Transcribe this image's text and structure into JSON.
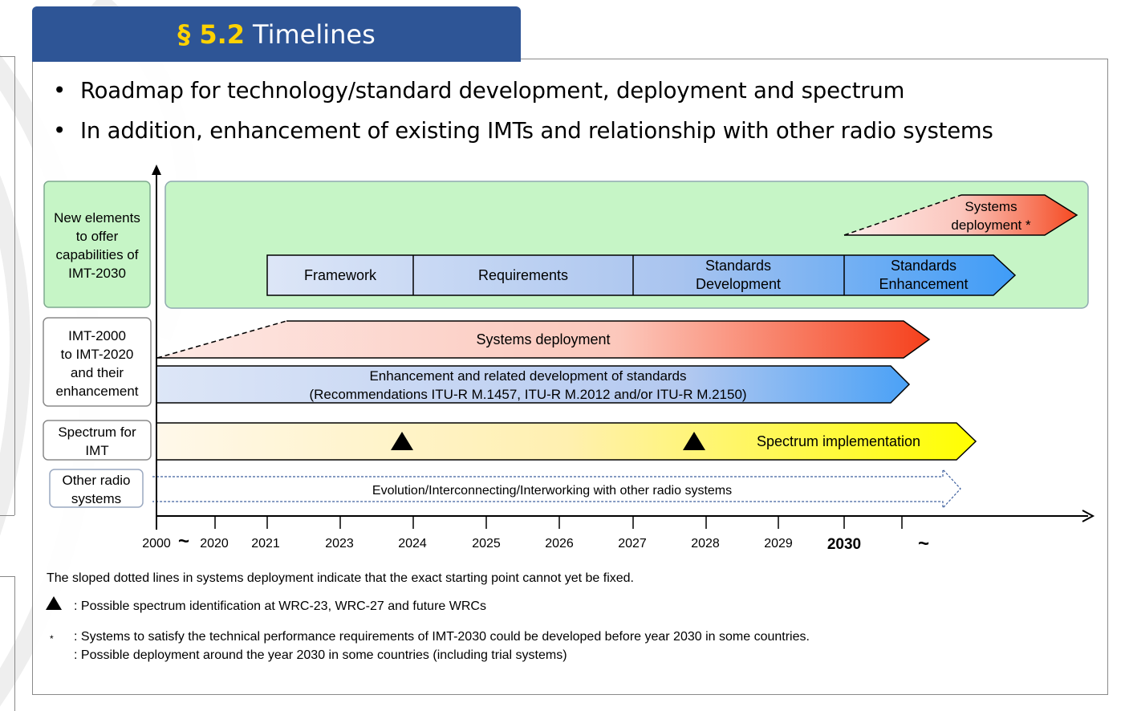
{
  "header": {
    "section_number": "§ 5.2",
    "title": "Timelines"
  },
  "bullets": [
    "Roadmap for technology/standard development, deployment and spectrum",
    "In addition, enhancement of existing IMTs and relationship with other radio systems"
  ],
  "diagram": {
    "row_labels": {
      "new_elements": [
        "New elements",
        "to offer",
        "capabilities of",
        "IMT-2030"
      ],
      "imt_existing": [
        "IMT-2000",
        "to IMT-2020",
        "and their",
        "enhancement"
      ],
      "spectrum": [
        "Spectrum for",
        "IMT"
      ],
      "other_radio": [
        "Other radio",
        "systems"
      ]
    },
    "phases": {
      "framework": "Framework",
      "requirements": "Requirements",
      "standards_development": [
        "Standards",
        "Development"
      ],
      "standards_enhancement": [
        "Standards",
        "Enhancement"
      ]
    },
    "systems_deployment_new": [
      "Systems",
      "deployment *"
    ],
    "systems_deployment": "Systems deployment",
    "enhancement": [
      "Enhancement and related development of standards",
      "(Recommendations ITU-R M.1457, ITU-R M.2012 and/or ITU-R M.2150)"
    ],
    "spectrum_implementation": "Spectrum implementation",
    "evolution": "Evolution/Interconnecting/Interworking with other radio systems",
    "axis": {
      "years": [
        "2000",
        "2020",
        "2021",
        "2023",
        "2024",
        "2025",
        "2026",
        "2027",
        "2028",
        "2029",
        "2030"
      ],
      "break_symbol": "~",
      "end_symbol": "~"
    },
    "colors": {
      "green_bg": "#c6f5c6",
      "blue_light": "#dde6f7",
      "blue_dark": "#3f9cf7",
      "red": "#f54a22",
      "yellow": "#ffff00"
    }
  },
  "notes": {
    "sloped": "The sloped dotted lines in systems deployment indicate that the exact starting point cannot yet be fixed.",
    "triangle": ": Possible spectrum identification at WRC-23, WRC-27 and future WRCs",
    "star_symbol": "*",
    "star_line1": ": Systems to satisfy the technical performance requirements of IMT-2030 could be developed before year 2030 in some countries.",
    "star_line2": ": Possible deployment around the year 2030 in some countries (including trial systems)"
  }
}
